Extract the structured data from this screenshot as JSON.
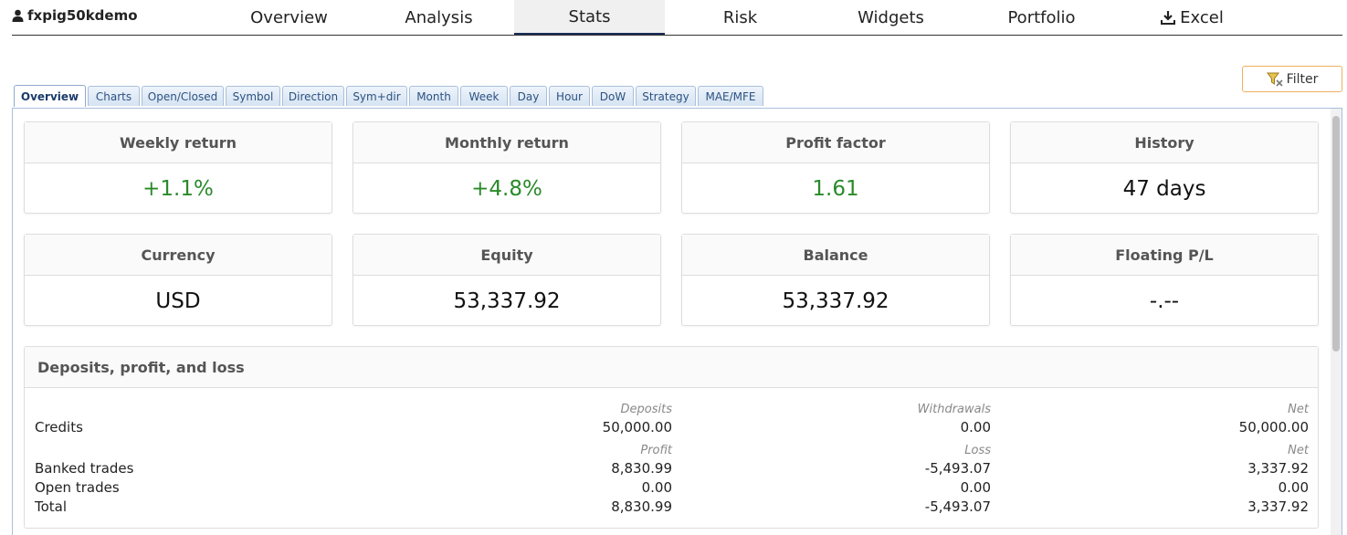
{
  "account": {
    "name": "fxpig50kdemo",
    "icon": "user-icon"
  },
  "nav": {
    "tabs": [
      "Overview",
      "Analysis",
      "Stats",
      "Risk",
      "Widgets",
      "Portfolio",
      "Excel"
    ],
    "active": "Stats",
    "excel_icon": "download-icon"
  },
  "filter": {
    "label": "Filter",
    "icon": "filter-icon"
  },
  "subtabs": {
    "items": [
      "Overview",
      "Charts",
      "Open/Closed",
      "Symbol",
      "Direction",
      "Sym+dir",
      "Month",
      "Week",
      "Day",
      "Hour",
      "DoW",
      "Strategy",
      "MAE/MFE"
    ],
    "active": "Overview"
  },
  "cards": [
    {
      "title": "Weekly return",
      "value": "+1.1%",
      "positive": true
    },
    {
      "title": "Monthly return",
      "value": "+4.8%",
      "positive": true
    },
    {
      "title": "Profit factor",
      "value": "1.61",
      "positive": true
    },
    {
      "title": "History",
      "value": "47 days",
      "positive": false
    },
    {
      "title": "Currency",
      "value": "USD",
      "positive": false
    },
    {
      "title": "Equity",
      "value": "53,337.92",
      "positive": false
    },
    {
      "title": "Balance",
      "value": "53,337.92",
      "positive": false
    },
    {
      "title": "Floating P/L",
      "value": "-.--",
      "positive": false
    }
  ],
  "dpl": {
    "title": "Deposits, profit, and loss",
    "credits": {
      "headers": [
        "Deposits",
        "Withdrawals",
        "Net"
      ],
      "label": "Credits",
      "values": [
        "50,000.00",
        "0.00",
        "50,000.00"
      ]
    },
    "trades": {
      "headers": [
        "Profit",
        "Loss",
        "Net"
      ],
      "rows": [
        {
          "label": "Banked trades",
          "values": [
            "8,830.99",
            "-5,493.07",
            "3,337.92"
          ]
        },
        {
          "label": "Open trades",
          "values": [
            "0.00",
            "0.00",
            "0.00"
          ]
        },
        {
          "label": "Total",
          "values": [
            "8,830.99",
            "-5,493.07",
            "3,337.92"
          ]
        }
      ]
    }
  },
  "colors": {
    "positive": "#2a8a2a",
    "tab_border": "#a8c0dc",
    "filter_border": "#f0b060",
    "nav_active_underline": "#1a2d5a"
  }
}
